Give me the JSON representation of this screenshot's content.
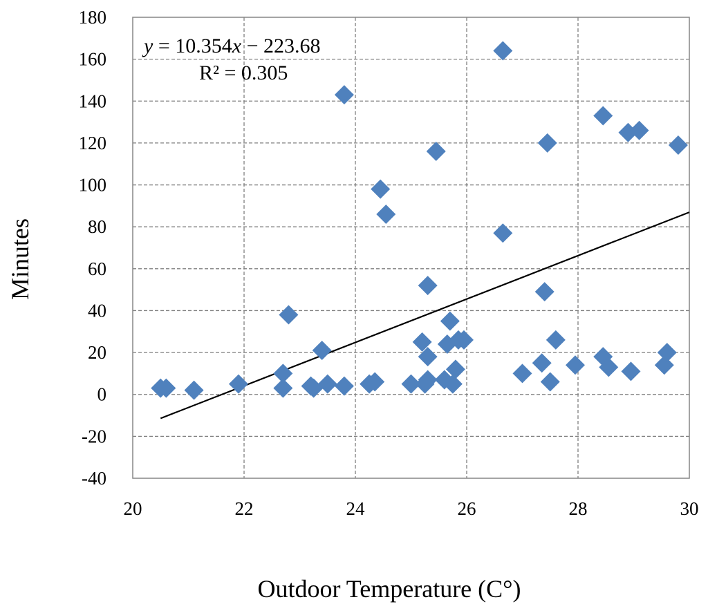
{
  "chart_data": {
    "type": "scatter",
    "xlabel": "Outdoor Temperature (C°)",
    "ylabel": "Minutes",
    "xlim": [
      20,
      30
    ],
    "ylim": [
      -40,
      180
    ],
    "x_ticks": [
      20,
      22,
      24,
      26,
      28,
      30
    ],
    "y_ticks": [
      -40,
      -20,
      0,
      20,
      40,
      60,
      80,
      100,
      120,
      140,
      160,
      180
    ],
    "grid": true,
    "marker": "diamond",
    "series": [
      {
        "name": "Minutes",
        "color": "#4f81bd",
        "points": [
          [
            20.5,
            3
          ],
          [
            20.6,
            3
          ],
          [
            21.1,
            2
          ],
          [
            21.9,
            5
          ],
          [
            22.7,
            3
          ],
          [
            22.7,
            10
          ],
          [
            22.8,
            38
          ],
          [
            23.2,
            4
          ],
          [
            23.25,
            3
          ],
          [
            23.4,
            21
          ],
          [
            23.5,
            5
          ],
          [
            23.8,
            4
          ],
          [
            23.8,
            143
          ],
          [
            24.25,
            5
          ],
          [
            24.35,
            6
          ],
          [
            24.45,
            98
          ],
          [
            24.55,
            86
          ],
          [
            25.0,
            5
          ],
          [
            25.2,
            25
          ],
          [
            25.25,
            5
          ],
          [
            25.3,
            7
          ],
          [
            25.3,
            18
          ],
          [
            25.3,
            52
          ],
          [
            25.45,
            116
          ],
          [
            25.6,
            7
          ],
          [
            25.65,
            24
          ],
          [
            25.7,
            35
          ],
          [
            25.75,
            5
          ],
          [
            25.8,
            12
          ],
          [
            25.85,
            26
          ],
          [
            25.95,
            26
          ],
          [
            26.65,
            164
          ],
          [
            26.65,
            77
          ],
          [
            27.0,
            10
          ],
          [
            27.35,
            15
          ],
          [
            27.4,
            49
          ],
          [
            27.45,
            120
          ],
          [
            27.5,
            6
          ],
          [
            27.6,
            26
          ],
          [
            27.95,
            14
          ],
          [
            28.45,
            18
          ],
          [
            28.45,
            133
          ],
          [
            28.55,
            13
          ],
          [
            28.9,
            125
          ],
          [
            28.95,
            11
          ],
          [
            29.1,
            126
          ],
          [
            29.55,
            14
          ],
          [
            29.6,
            20
          ],
          [
            29.8,
            119
          ]
        ]
      }
    ],
    "trendline": {
      "type": "linear",
      "slope": 10.354,
      "intercept": -223.68,
      "x_range": [
        20.5,
        30
      ],
      "color": "#000000"
    },
    "annotations": {
      "equation_y": "y",
      "equation_mid": " = 10.354",
      "equation_x": "x",
      "equation_rest": " − 223.68",
      "r_squared": "R² = 0.305"
    }
  }
}
